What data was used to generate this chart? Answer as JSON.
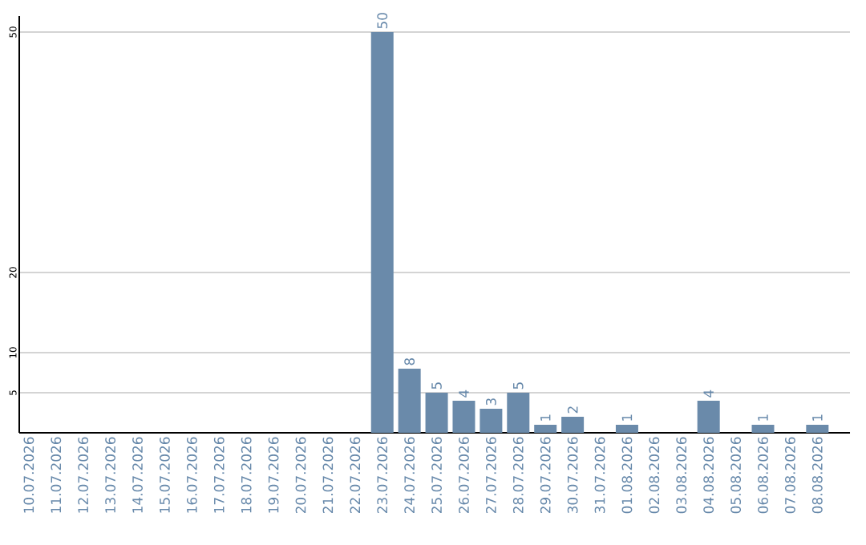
{
  "chart_data": {
    "type": "bar",
    "categories": [
      "10.07.2026",
      "11.07.2026",
      "12.07.2026",
      "13.07.2026",
      "14.07.2026",
      "15.07.2026",
      "16.07.2026",
      "17.07.2026",
      "18.07.2026",
      "19.07.2026",
      "20.07.2026",
      "21.07.2026",
      "22.07.2026",
      "23.07.2026",
      "24.07.2026",
      "25.07.2026",
      "26.07.2026",
      "27.07.2026",
      "28.07.2026",
      "29.07.2026",
      "30.07.2026",
      "31.07.2026",
      "01.08.2026",
      "02.08.2026",
      "03.08.2026",
      "04.08.2026",
      "05.08.2026",
      "06.08.2026",
      "07.08.2026",
      "08.08.2026"
    ],
    "values": [
      0,
      0,
      0,
      0,
      0,
      0,
      0,
      0,
      0,
      0,
      0,
      0,
      0,
      50,
      8,
      5,
      4,
      3,
      5,
      1,
      2,
      0,
      1,
      0,
      0,
      4,
      0,
      1,
      0,
      1
    ],
    "value_labels": [
      null,
      null,
      null,
      null,
      null,
      null,
      null,
      null,
      null,
      null,
      null,
      null,
      null,
      "50",
      "8",
      "5",
      "4",
      "3",
      "5",
      "1",
      "2",
      null,
      "1",
      null,
      null,
      "4",
      null,
      "1",
      null,
      "1"
    ],
    "color": "#6a8aaa",
    "ylim": [
      0,
      52
    ],
    "yticks": [
      5,
      10,
      20,
      50
    ],
    "grid": "y"
  }
}
